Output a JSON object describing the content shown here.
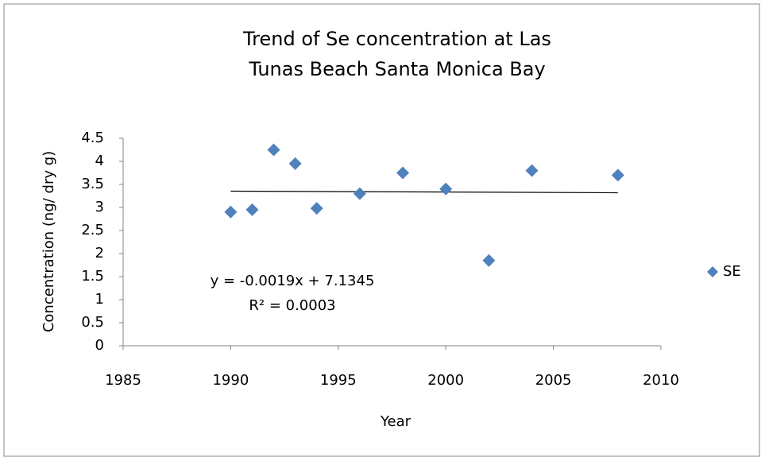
{
  "chart_data": {
    "type": "scatter",
    "title": "Trend of Se concentration at Las Tunas Beach Santa Monica Bay",
    "x_label": "Year",
    "y_label": "Concentration (ng/ dry g)",
    "series": [
      {
        "name": "SE",
        "color": "#4f81bd",
        "x": [
          1990,
          1991,
          1992,
          1993,
          1994,
          1996,
          1998,
          2000,
          2002,
          2004,
          2008
        ],
        "values": [
          2.9,
          2.95,
          4.25,
          3.95,
          2.98,
          3.3,
          3.75,
          3.4,
          1.85,
          3.8,
          3.7
        ]
      }
    ],
    "trendline": {
      "slope": -0.0019,
      "intercept": 7.1345,
      "color": "#000000",
      "equation": "y = -0.0019x + 7.1345",
      "r2": "R² = 0.0003"
    },
    "xlim": [
      1985,
      2010
    ],
    "xticks": [
      1985,
      1990,
      1995,
      2000,
      2005,
      2010
    ],
    "ylim": [
      0,
      4.5
    ],
    "yticks": [
      0,
      0.5,
      1,
      1.5,
      2,
      2.5,
      3,
      3.5,
      4,
      4.5
    ],
    "grid": false,
    "legend": "right"
  }
}
